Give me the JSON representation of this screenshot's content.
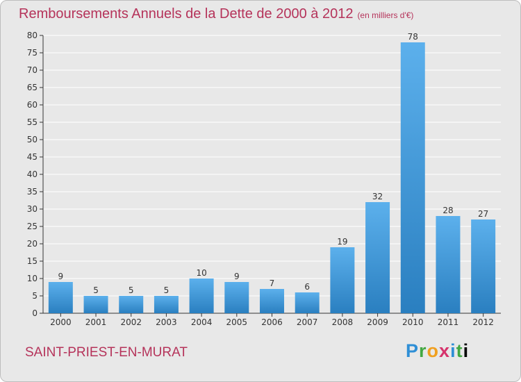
{
  "title": "Remboursements Annuels de la Dette de 2000 à 2012",
  "title_unit": "(en milliers d'€)",
  "location": "SAINT-PRIEST-EN-MURAT",
  "logo": "Proxiti",
  "colors": {
    "title": "#b5335a",
    "bar_top": "#5cb0ec",
    "bar_bottom": "#2a7fc0",
    "background": "#e8e8e8",
    "grid": "#ffffff",
    "axis": "#333333"
  },
  "chart_data": {
    "type": "bar",
    "categories": [
      "2000",
      "2001",
      "2002",
      "2003",
      "2004",
      "2005",
      "2006",
      "2007",
      "2008",
      "2009",
      "2010",
      "2011",
      "2012"
    ],
    "values": [
      9,
      5,
      5,
      5,
      10,
      9,
      7,
      6,
      19,
      32,
      78,
      28,
      27
    ],
    "ylim": [
      0,
      80
    ],
    "yticks": [
      0,
      5,
      10,
      15,
      20,
      25,
      30,
      35,
      40,
      45,
      50,
      55,
      60,
      65,
      70,
      75,
      80
    ],
    "grid": true,
    "legend": "none"
  }
}
